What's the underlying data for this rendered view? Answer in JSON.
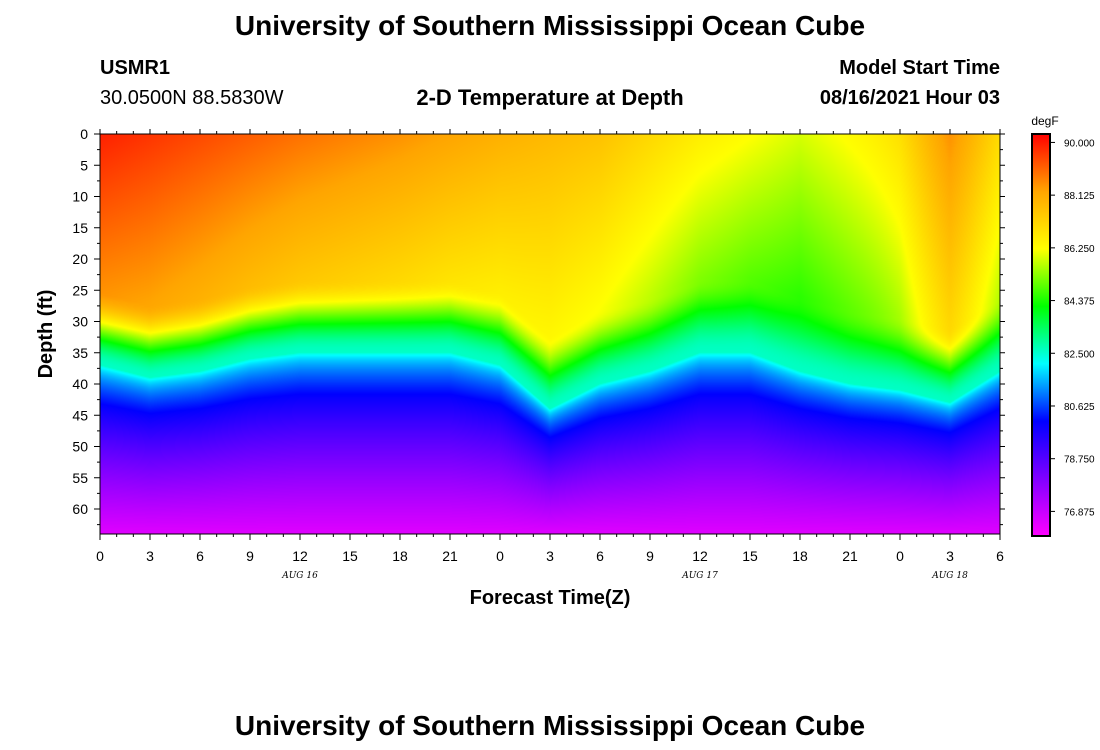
{
  "header": {
    "title_top": "University of Southern Mississippi Ocean Cube",
    "title_bottom": "University of Southern Mississippi Ocean Cube",
    "station_id": "USMR1",
    "coordinates": "30.0500N  88.5830W",
    "plot_title": "2-D Temperature at Depth",
    "model_start_label": "Model Start Time",
    "model_start_value": "08/16/2021 Hour 03"
  },
  "chart_data": {
    "type": "heatmap",
    "title": "2-D Temperature at Depth",
    "xlabel": "Forecast Time(Z)",
    "ylabel": "Depth (ft)",
    "x_tick_labels": [
      "0",
      "3",
      "6",
      "9",
      "12",
      "15",
      "18",
      "21",
      "0",
      "3",
      "6",
      "9",
      "12",
      "15",
      "18",
      "21",
      "0",
      "3",
      "6"
    ],
    "x_range_hours": [
      0,
      54
    ],
    "date_labels": [
      {
        "text": "AUG 16",
        "hour": 12
      },
      {
        "text": "AUG 17",
        "hour": 36
      },
      {
        "text": "AUG 18",
        "hour": 51
      }
    ],
    "y_tick_labels": [
      "0",
      "5",
      "10",
      "15",
      "20",
      "25",
      "30",
      "35",
      "40",
      "45",
      "50",
      "55",
      "60"
    ],
    "y_range_ft": [
      0,
      64
    ],
    "colorbar": {
      "unit": "degF",
      "min": 76.0,
      "max": 90.3,
      "labels": [
        "90.000",
        "88.125",
        "86.250",
        "84.375",
        "82.500",
        "80.625",
        "78.750",
        "76.875"
      ],
      "colors": [
        "#ff00ff",
        "#8000ff",
        "#0000ff",
        "#00ffff",
        "#00ff00",
        "#ffff00",
        "#ffa500",
        "#ff0000"
      ]
    },
    "surface_temp_by_hour": {
      "hours": [
        0,
        6,
        12,
        18,
        24,
        30,
        36,
        42,
        48,
        51,
        54
      ],
      "values_degF": [
        89.9,
        89.4,
        88.9,
        88.5,
        88.0,
        87.6,
        86.6,
        85.9,
        86.7,
        87.9,
        86.8
      ]
    },
    "thermocline_depth_by_hour": {
      "hours": [
        0,
        3,
        6,
        9,
        12,
        15,
        18,
        21,
        24,
        27,
        30,
        33,
        36,
        39,
        42,
        45,
        48,
        51,
        54
      ],
      "values_ft": [
        37,
        39,
        38,
        36,
        35,
        35,
        35,
        35,
        37,
        44,
        40,
        38,
        35,
        35,
        38,
        40,
        41,
        43,
        38
      ]
    },
    "bottom_temp_degF": 76.5
  }
}
